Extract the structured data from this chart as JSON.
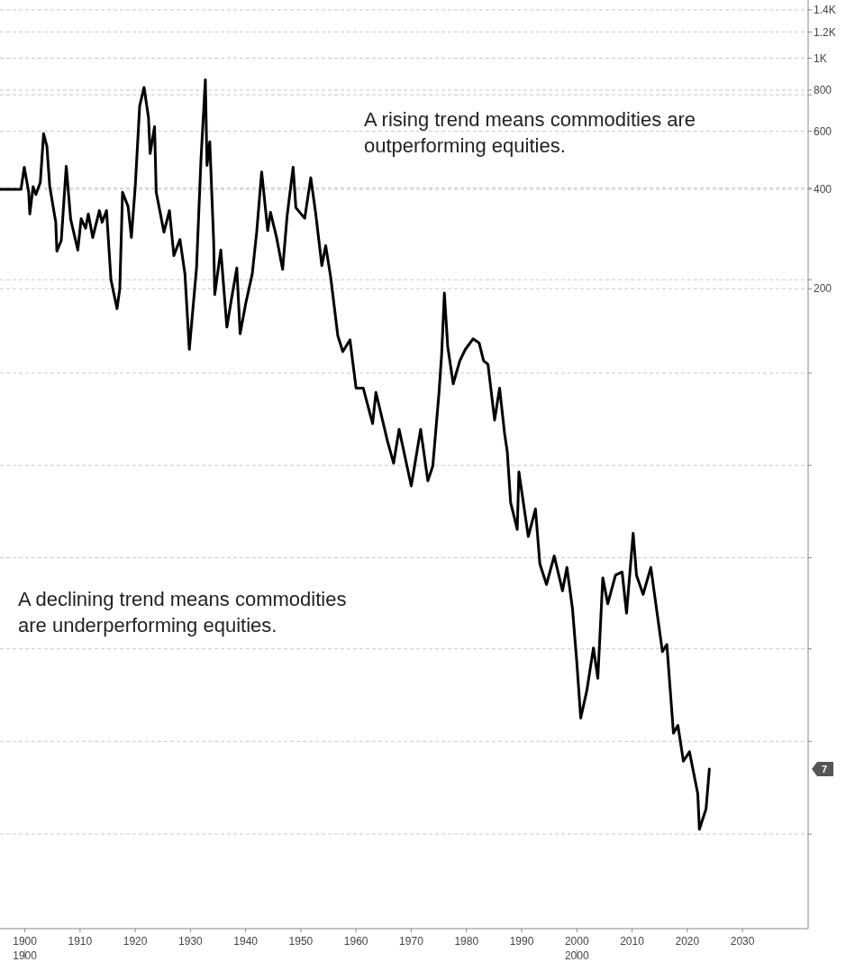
{
  "chart_data": {
    "type": "line",
    "log": true,
    "grid": true,
    "xlim": [
      1895.5,
      2041.9
    ],
    "xticks": [
      1900,
      1910,
      1920,
      1930,
      1940,
      1950,
      1960,
      1970,
      1980,
      1990,
      2000,
      2010,
      2020,
      2030
    ],
    "ylim": [
      2.3,
      1500
    ],
    "yticks": [
      {
        "value": 4.45,
        "label": null
      },
      {
        "value": 8.5,
        "label": null
      },
      {
        "value": 16.2,
        "label": null
      },
      {
        "value": 30.6,
        "label": null
      },
      {
        "value": 58.3,
        "label": null
      },
      {
        "value": 111,
        "label": null
      },
      200,
      {
        "value": 213,
        "label": null
      },
      400,
      {
        "value": 404,
        "label": null
      },
      600,
      {
        "value": 774,
        "label": null
      },
      800,
      {
        "value": 1000,
        "label": "1K"
      },
      {
        "value": 1200,
        "label": "1.2K"
      },
      {
        "value": 1400,
        "label": "1.4K"
      }
    ],
    "series": [
      {
        "color": "#000000",
        "x": [
          1895.5,
          1899.3,
          1899.9,
          1900.7,
          1900.9,
          1901.5,
          1902,
          1902.8,
          1903.4,
          1904,
          1904.5,
          1905.6,
          1905.8,
          1906.6,
          1907.5,
          1908.3,
          1909.6,
          1910.2,
          1911,
          1911.5,
          1912.3,
          1913.5,
          1914,
          1914.8,
          1915.6,
          1916.7,
          1917.2,
          1917.7,
          1918.7,
          1919.3,
          1920,
          1920.8,
          1921.6,
          1922.4,
          1922.7,
          1923.5,
          1923.8,
          1925.2,
          1926.2,
          1927,
          1928.1,
          1929,
          1929.8,
          1931.1,
          1931.9,
          1932.7,
          1933,
          1933.5,
          1934.2,
          1934.4,
          1935.5,
          1936.6,
          1937.4,
          1938.4,
          1939,
          1940,
          1941.2,
          1942,
          1942.9,
          1944,
          1944.5,
          1945.6,
          1946.7,
          1947.5,
          1948.6,
          1949.1,
          1950.7,
          1951.8,
          1952.7,
          1953.8,
          1954.5,
          1955.4,
          1956.7,
          1957.6,
          1958.9,
          1960,
          1961.3,
          1963,
          1963.6,
          1965.7,
          1966.8,
          1967.8,
          1970,
          1971.7,
          1973,
          1973.9,
          1975,
          1975.5,
          1976,
          1976.6,
          1977.6,
          1978.8,
          1979.8,
          1981.2,
          1982.3,
          1983.1,
          1983.9,
          1985.1,
          1986,
          1986.9,
          1987.4,
          1988,
          1989.2,
          1989.5,
          1991.2,
          1992.5,
          1993.3,
          1994.5,
          1995.9,
          1997.4,
          1998.2,
          1999.2,
          2000,
          2000.7,
          2001.8,
          2003,
          2003.8,
          2004.7,
          2005.6,
          2007,
          2008.2,
          2009,
          2010.2,
          2010.8,
          2012,
          2013.4,
          2014.4,
          2015.5,
          2016.3,
          2017.5,
          2018.3,
          2019.3,
          2020.4,
          2021.9,
          2022.2,
          2023.4,
          2024
        ],
        "values": [
          400,
          400,
          467,
          392,
          337,
          408,
          386,
          420,
          590,
          540,
          410,
          318,
          260,
          280,
          470,
          325,
          262,
          326,
          305,
          337,
          286,
          345,
          318,
          345,
          213,
          174,
          200,
          392,
          355,
          286,
          408,
          716,
          815,
          660,
          514,
          620,
          392,
          297,
          345,
          252,
          282,
          222,
          131,
          231,
          490,
          860,
          473,
          558,
          280,
          192,
          262,
          153,
          185,
          231,
          146,
          180,
          222,
          297,
          452,
          300,
          341,
          286,
          229,
          331,
          467,
          352,
          327,
          434,
          337,
          235,
          270,
          217,
          144,
          129,
          140,
          100,
          100,
          78,
          97,
          69,
          59.2,
          75,
          50.5,
          75,
          52.4,
          58,
          95.5,
          126,
          194,
          134,
          103,
          121,
          131,
          141,
          137,
          121,
          118,
          80,
          100,
          73,
          64,
          45,
          37.3,
          55.7,
          35.5,
          43,
          29.3,
          25.4,
          31,
          24.3,
          28.6,
          21.5,
          14.7,
          10,
          12.1,
          16.3,
          13.2,
          26.6,
          22.2,
          27.1,
          27.7,
          20.8,
          36.3,
          27.1,
          23.7,
          28.6,
          21.6,
          15.9,
          16.7,
          9,
          9.5,
          7.4,
          7.9,
          5.9,
          4.6,
          5.3,
          7.0
        ]
      }
    ],
    "x2lim": [
      1895.5,
      2041.9
    ],
    "x2ticks": [
      1900,
      2000
    ],
    "annotations": [
      "A rising trend means commodities are outperforming equities.",
      "A declining trend means commodities are underperforming equities.",
      "7"
    ]
  }
}
